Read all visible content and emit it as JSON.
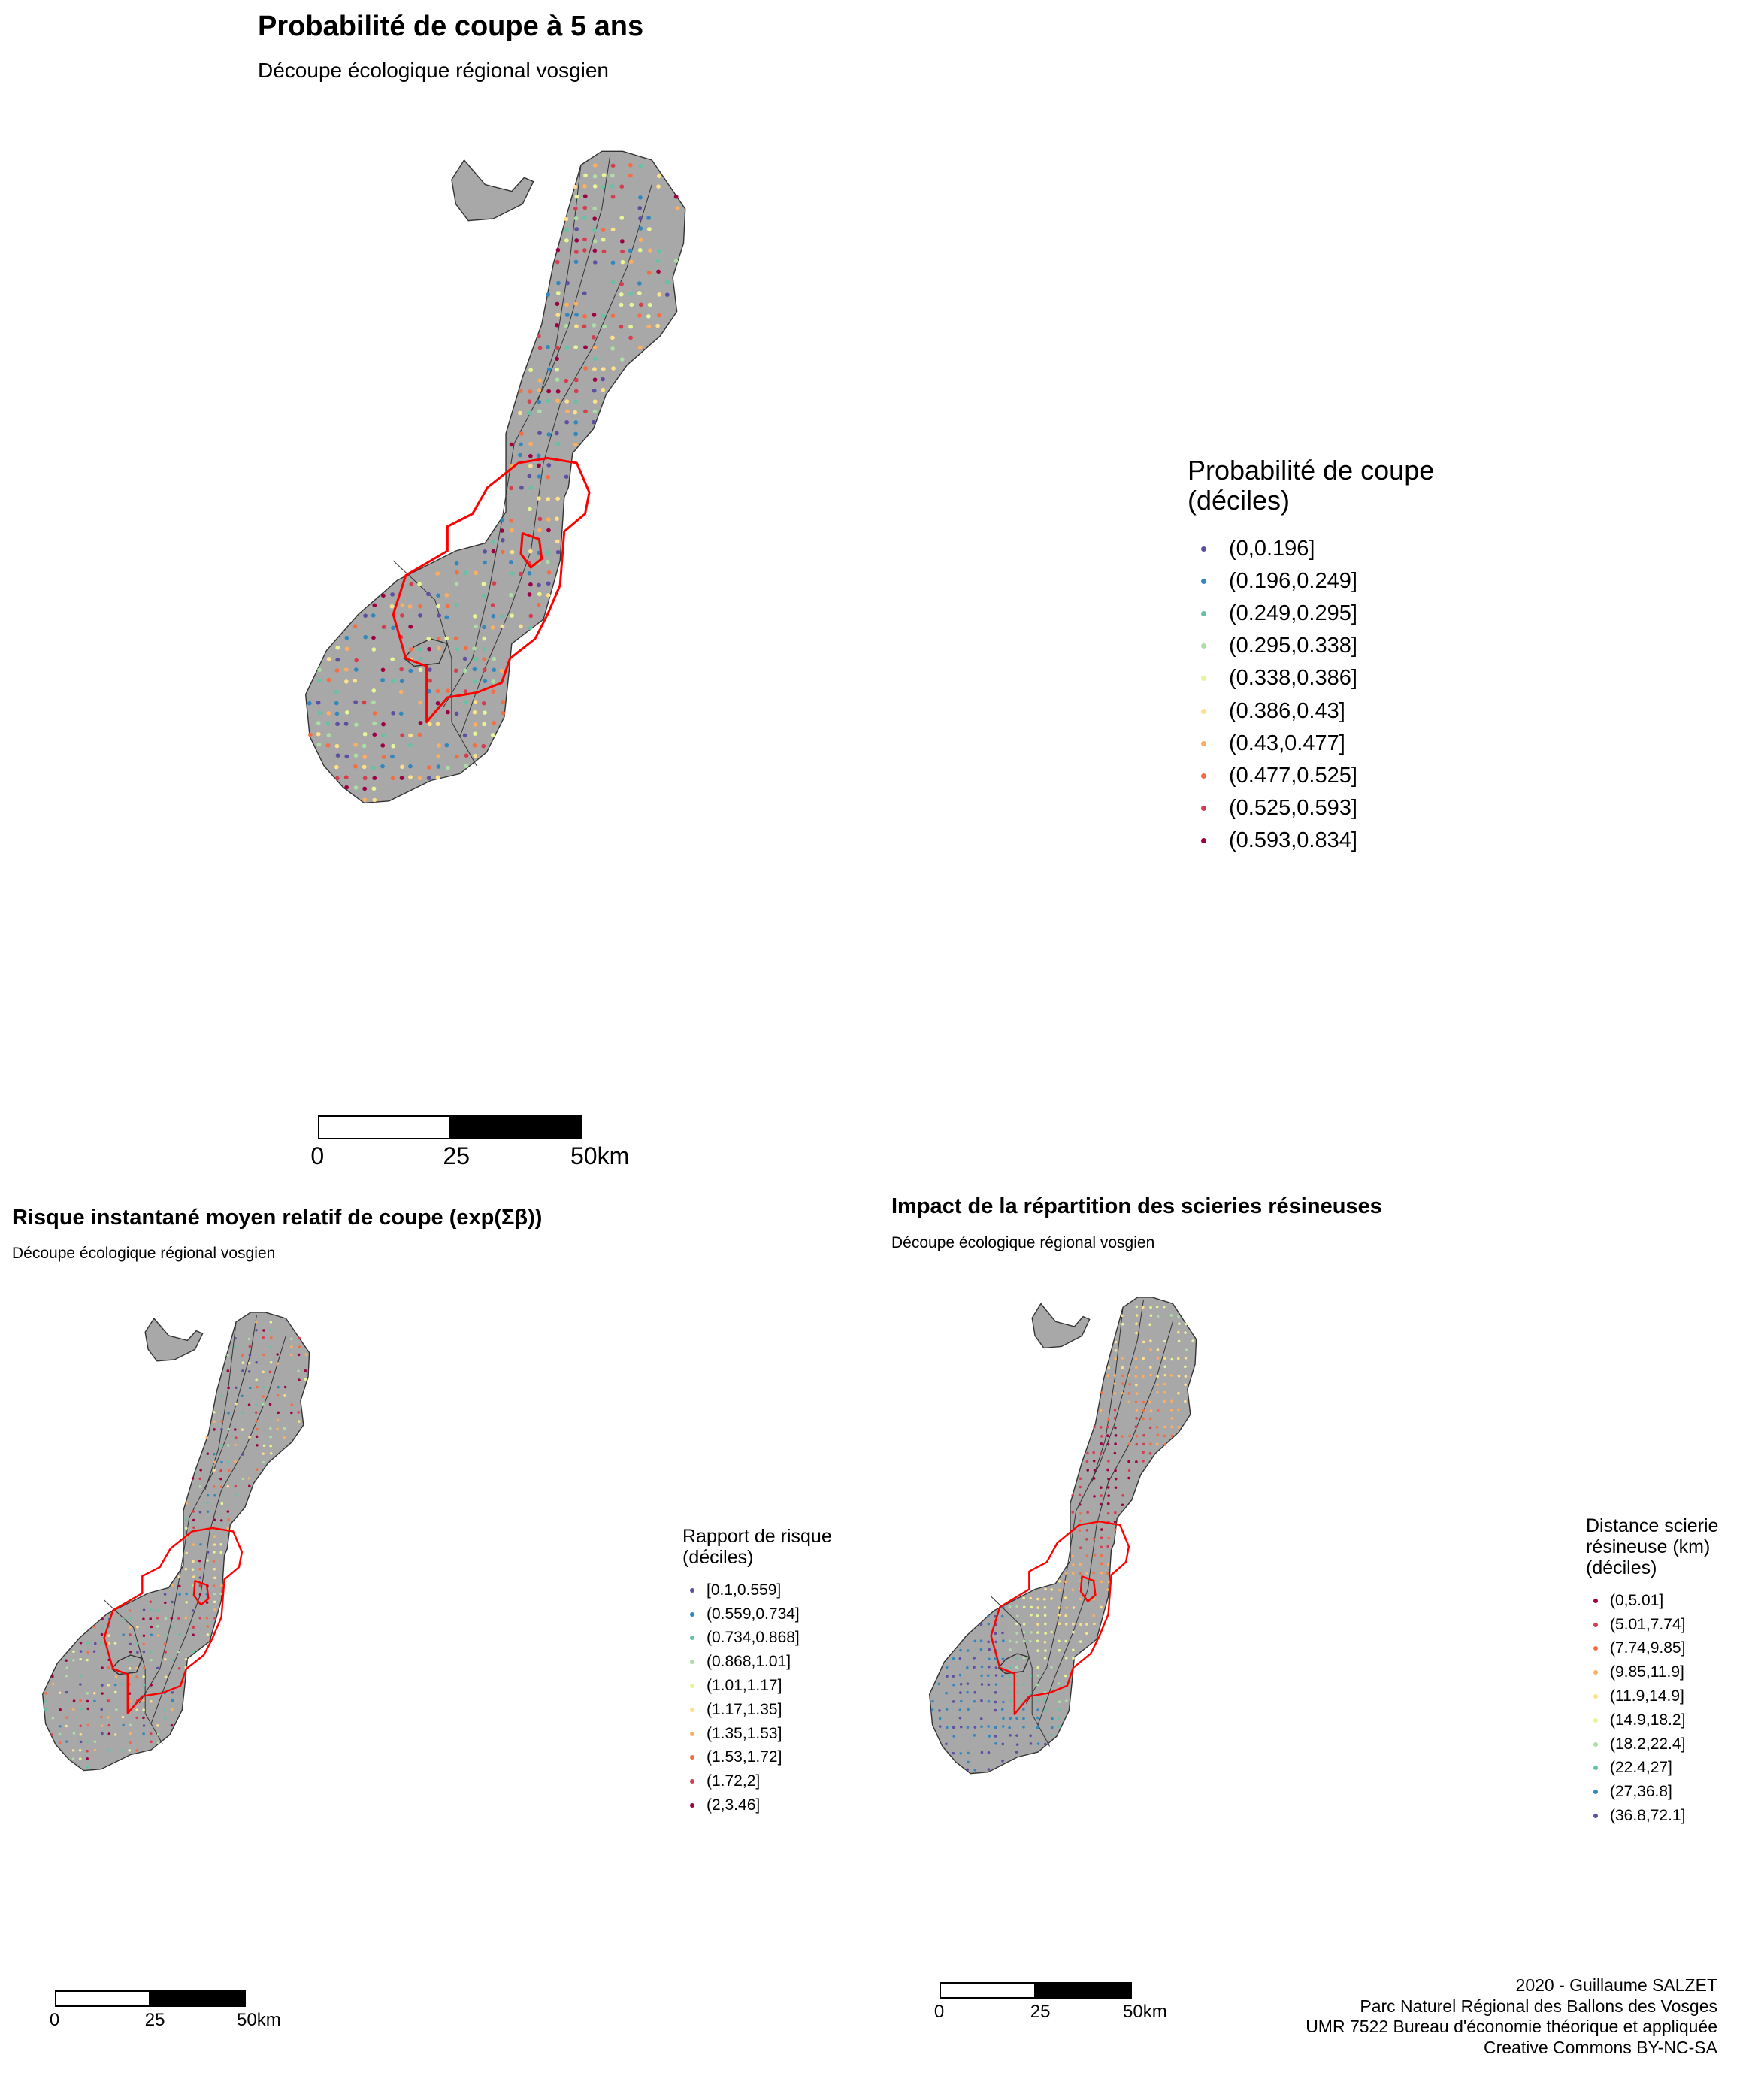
{
  "main_map": {
    "title": "Probabilité de coupe à 5 ans",
    "subtitle": "Découpe écologique régional vosgien",
    "legend_title_lines": [
      "Probabilité de coupe",
      "(déciles)"
    ],
    "legend_items": [
      {
        "label": "(0,0.196]",
        "color": "#5E4FA2"
      },
      {
        "label": "(0.196,0.249]",
        "color": "#3288BD"
      },
      {
        "label": "(0.249,0.295]",
        "color": "#66C2A5"
      },
      {
        "label": "(0.295,0.338]",
        "color": "#ABDDA4"
      },
      {
        "label": "(0.338,0.386]",
        "color": "#E6F598"
      },
      {
        "label": "(0.386,0.43]",
        "color": "#FEE08B"
      },
      {
        "label": "(0.43,0.477]",
        "color": "#FDAE61"
      },
      {
        "label": "(0.477,0.525]",
        "color": "#F46D43"
      },
      {
        "label": "(0.525,0.593]",
        "color": "#D53E4F"
      },
      {
        "label": "(0.593,0.834]",
        "color": "#9E0142"
      }
    ],
    "scale_labels": [
      "0",
      "25",
      "50km"
    ]
  },
  "risk_map": {
    "title": "Risque instantané moyen relatif de coupe (exp(Σβ))",
    "subtitle": "Découpe écologique régional vosgien",
    "legend_title_lines": [
      "Rapport de risque",
      "(déciles)"
    ],
    "legend_items": [
      {
        "label": "[0.1,0.559]",
        "color": "#5E4FA2"
      },
      {
        "label": "(0.559,0.734]",
        "color": "#3288BD"
      },
      {
        "label": "(0.734,0.868]",
        "color": "#66C2A5"
      },
      {
        "label": "(0.868,1.01]",
        "color": "#ABDDA4"
      },
      {
        "label": "(1.01,1.17]",
        "color": "#E6F598"
      },
      {
        "label": "(1.17,1.35]",
        "color": "#FEE08B"
      },
      {
        "label": "(1.35,1.53]",
        "color": "#FDAE61"
      },
      {
        "label": "(1.53,1.72]",
        "color": "#F46D43"
      },
      {
        "label": "(1.72,2]",
        "color": "#D53E4F"
      },
      {
        "label": "(2,3.46]",
        "color": "#9E0142"
      }
    ],
    "scale_labels": [
      "0",
      "25",
      "50km"
    ]
  },
  "sawmill_map": {
    "title": "Impact de la répartition des scieries résineuses",
    "subtitle": "Découpe écologique régional vosgien",
    "legend_title_lines": [
      "Distance scierie",
      "résineuse (km)",
      "(déciles)"
    ],
    "legend_items": [
      {
        "label": "(0,5.01]",
        "color": "#9E0142"
      },
      {
        "label": "(5.01,7.74]",
        "color": "#D53E4F"
      },
      {
        "label": "(7.74,9.85]",
        "color": "#F46D43"
      },
      {
        "label": "(9.85,11.9]",
        "color": "#FDAE61"
      },
      {
        "label": "(11.9,14.9]",
        "color": "#FEE08B"
      },
      {
        "label": "(14.9,18.2]",
        "color": "#E6F598"
      },
      {
        "label": "(18.2,22.4]",
        "color": "#ABDDA4"
      },
      {
        "label": "(22.4,27]",
        "color": "#66C2A5"
      },
      {
        "label": "(27,36.8]",
        "color": "#3288BD"
      },
      {
        "label": "(36.8,72.1]",
        "color": "#5E4FA2"
      }
    ],
    "scale_labels": [
      "0",
      "25",
      "50km"
    ]
  },
  "credits": [
    "2020 - Guillaume SALZET",
    "Parc Naturel Régional des Ballons des Vosges",
    "UMR 7522 Bureau d'économie théorique et appliquée",
    "Creative Commons BY-NC-SA"
  ],
  "map_style": {
    "land_color": "#A8A8A8",
    "border_color": "#333333",
    "park_boundary_color": "#FF0000"
  }
}
